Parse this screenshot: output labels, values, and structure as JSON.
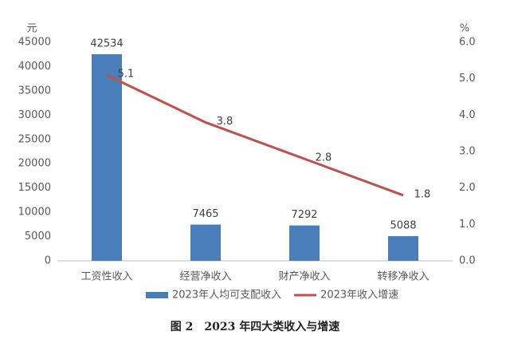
{
  "chart_data": {
    "type": "bar",
    "ylabel": "元",
    "y2label": "%",
    "categories": [
      "工资性收入",
      "经营净收入",
      "财产净收入",
      "转移净收入"
    ],
    "series": [
      {
        "name": "2023年人均可支配收入",
        "type": "bar",
        "color": "#4a7ebb",
        "values": [
          42534,
          7465,
          7292,
          5088
        ]
      },
      {
        "name": "2023年收入增速",
        "type": "line",
        "axis": "y2",
        "color": "#c0504d",
        "values": [
          5.1,
          3.8,
          2.8,
          1.8
        ]
      }
    ],
    "ylim": [
      0,
      45000
    ],
    "yticks": [
      0,
      5000,
      10000,
      15000,
      20000,
      25000,
      30000,
      35000,
      40000,
      45000
    ],
    "y2lim": [
      0,
      6
    ],
    "y2ticks": [
      {
        "value": 0,
        "label": "0.0"
      },
      {
        "value": 1,
        "label": "1.0"
      },
      {
        "value": 2,
        "label": "2.0"
      },
      {
        "value": 3,
        "label": "3.0"
      },
      {
        "value": 4,
        "label": "4.0"
      },
      {
        "value": 5,
        "label": "5.0"
      },
      {
        "value": 6,
        "label": "6.0"
      }
    ],
    "grid": false,
    "caption": "图 2　2023 年四大类收入与增速"
  }
}
